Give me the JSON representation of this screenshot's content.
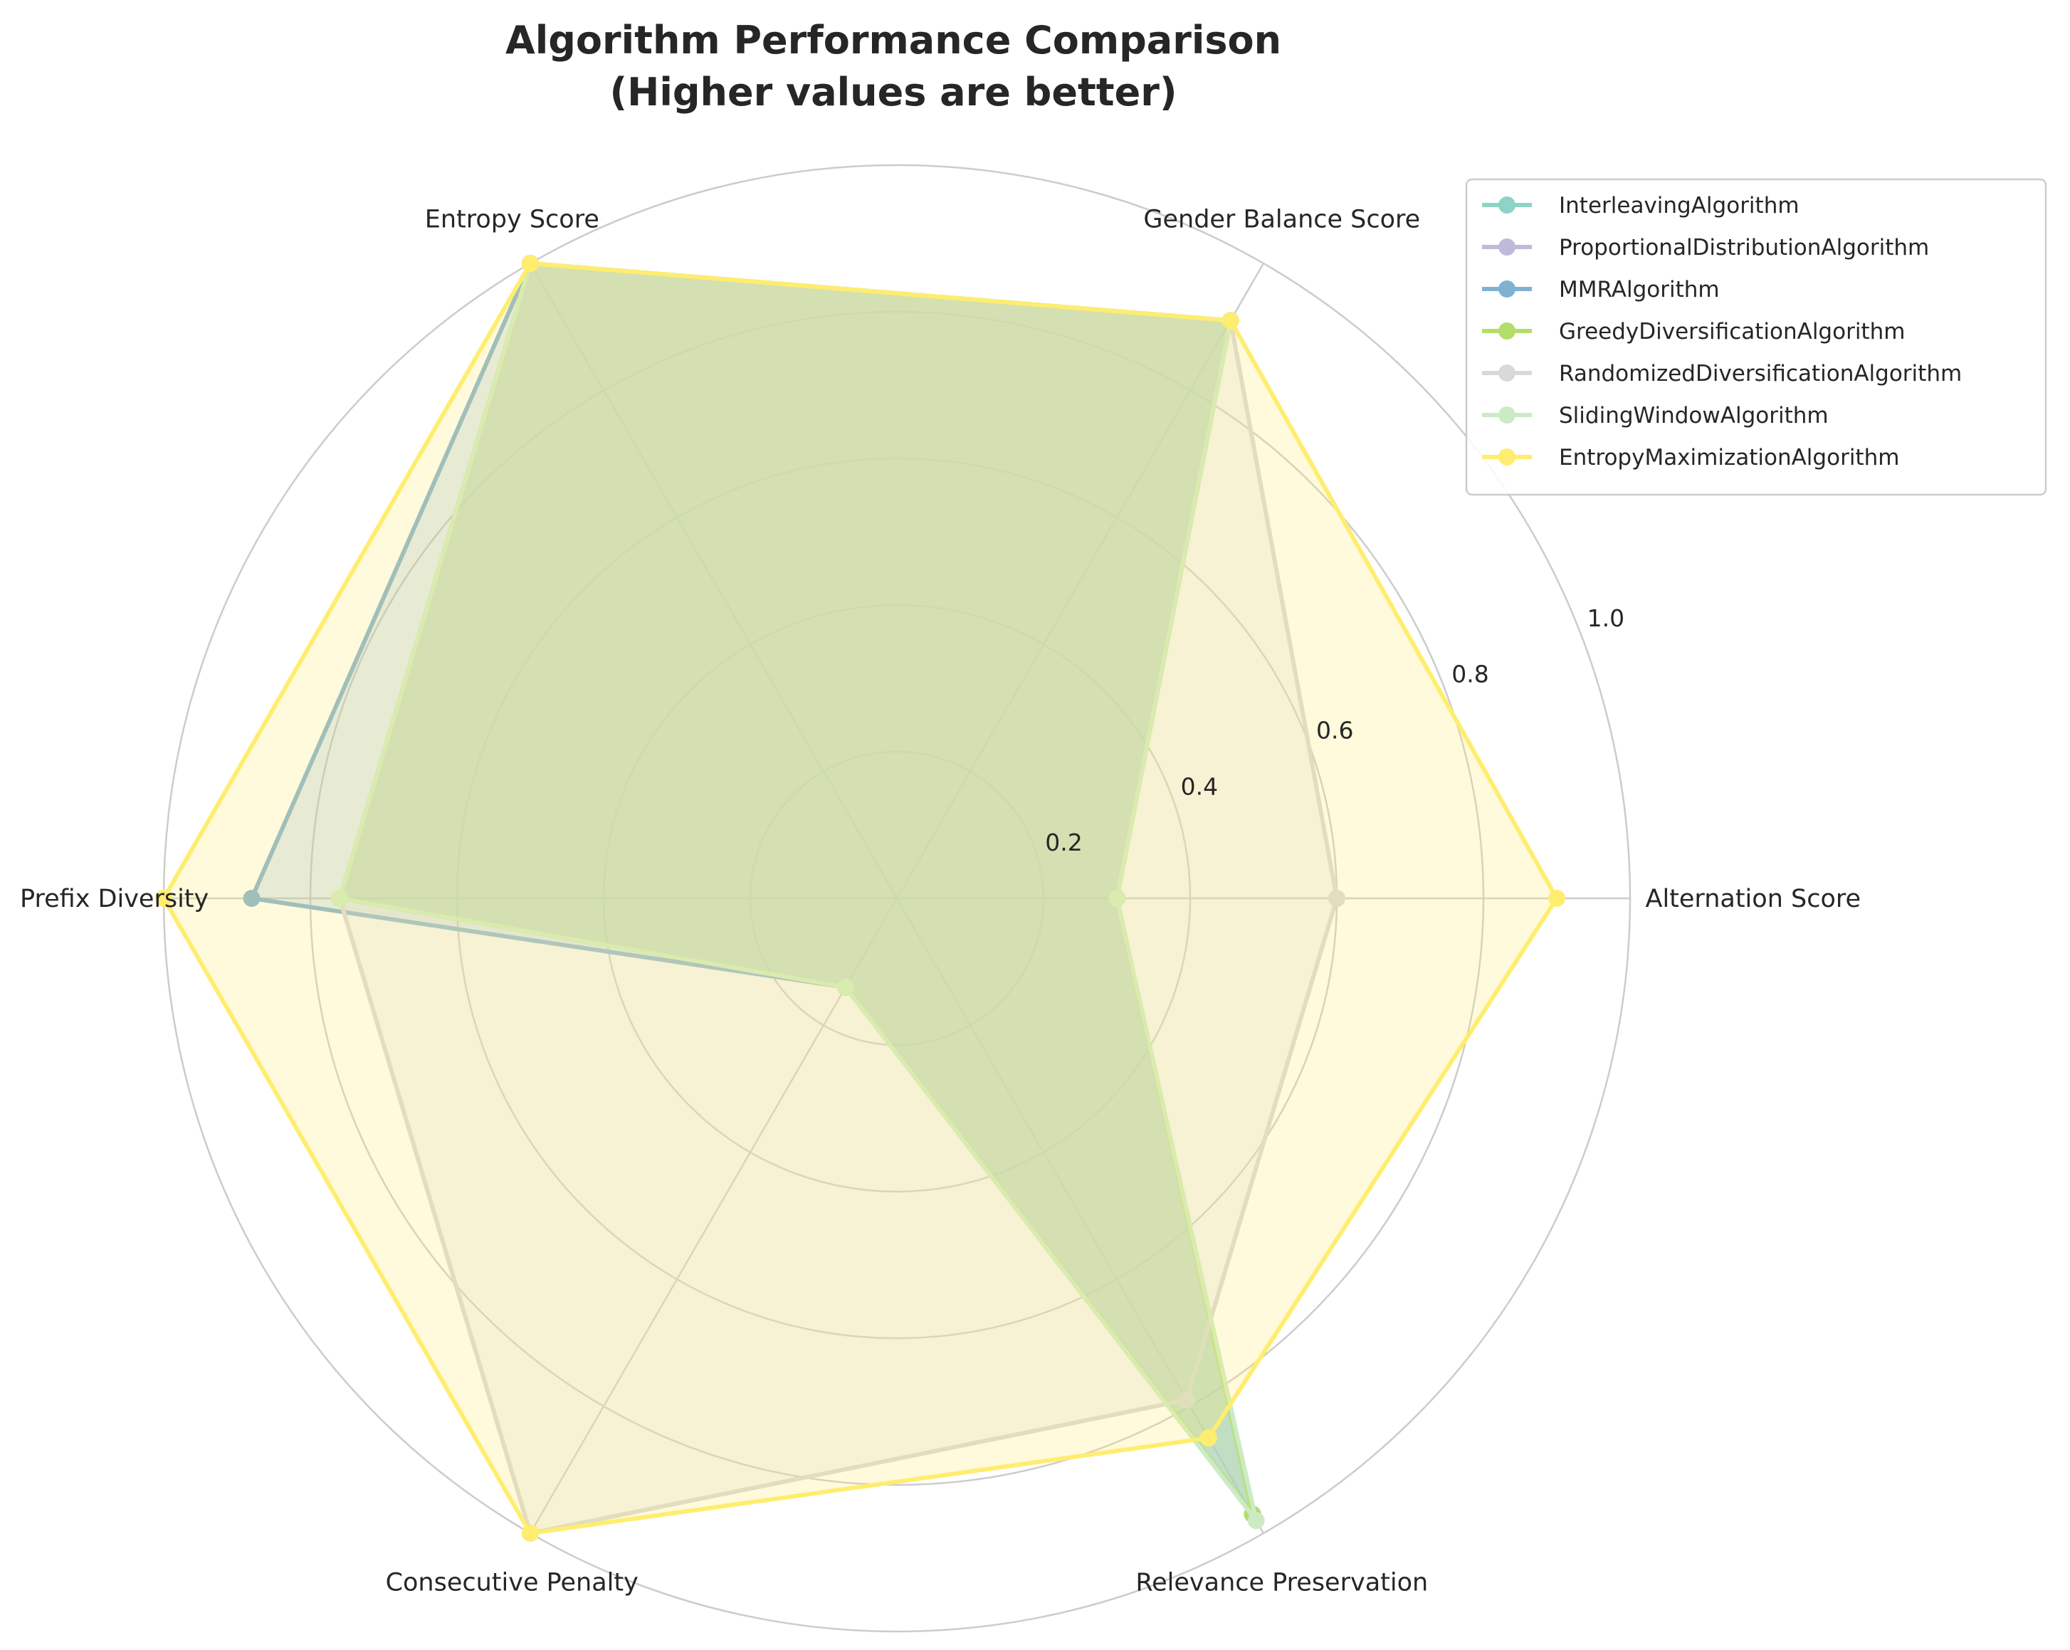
{
  "chart_data": {
    "type": "radar",
    "title": "Algorithm Performance Comparison",
    "subtitle": "(Higher values are better)",
    "axes": [
      "Alternation Score",
      "Gender Balance Score",
      "Entropy Score",
      "Prefix Diversity",
      "Consecutive Penalty",
      "Relevance Preservation"
    ],
    "rlim": [
      0,
      1.0
    ],
    "r_ticks": [
      "0.2",
      "0.4",
      "0.6",
      "0.8",
      "1.0"
    ],
    "r_tick_values": [
      0.2,
      0.4,
      0.6,
      0.8,
      1.0
    ],
    "grid": true,
    "legend_position": "top-right",
    "series": [
      {
        "name": "InterleavingAlgorithm",
        "color": "#8dd3c7",
        "values": [
          0.3,
          0.91,
          1.0,
          0.76,
          0.14,
          0.97
        ]
      },
      {
        "name": "ProportionalDistributionAlgorithm",
        "color": "#bebada",
        "values": [
          0.3,
          0.91,
          1.0,
          0.76,
          0.14,
          0.97
        ]
      },
      {
        "name": "MMRAlgorithm",
        "color": "#80b1d3",
        "values": [
          0.3,
          0.91,
          1.0,
          0.88,
          0.14,
          0.97
        ]
      },
      {
        "name": "GreedyDiversificationAlgorithm",
        "color": "#b3de69",
        "values": [
          0.3,
          0.91,
          1.0,
          0.76,
          0.14,
          0.97
        ]
      },
      {
        "name": "RandomizedDiversificationAlgorithm",
        "color": "#d9d9d9",
        "values": [
          0.6,
          0.91,
          1.0,
          0.76,
          1.0,
          0.79
        ]
      },
      {
        "name": "SlidingWindowAlgorithm",
        "color": "#ccebc5",
        "values": [
          0.3,
          0.91,
          1.0,
          0.76,
          0.14,
          0.98
        ]
      },
      {
        "name": "EntropyMaximizationAlgorithm",
        "color": "#ffed6f",
        "values": [
          0.9,
          0.91,
          1.0,
          1.0,
          1.0,
          0.85
        ]
      }
    ]
  }
}
